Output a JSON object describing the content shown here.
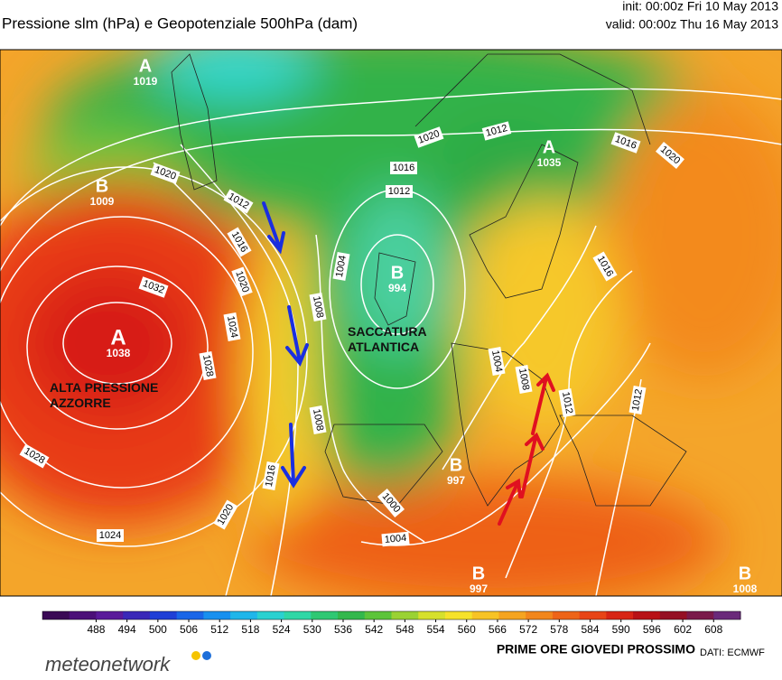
{
  "header": {
    "title": "Pressione slm (hPa) e Geopotenziale 500hPa (dam)",
    "init": "init: 00:00z Fri 10 May 2013",
    "valid": "valid: 00:00z Thu 16 May 2013"
  },
  "map": {
    "centers": [
      {
        "letter": "A",
        "value": "1038"
      },
      {
        "letter": "B",
        "value": "994"
      },
      {
        "letter": "B",
        "value": "1009"
      },
      {
        "letter": "A",
        "value": "1035"
      },
      {
        "letter": "A",
        "value": "1019"
      },
      {
        "letter": "B",
        "value": "997"
      },
      {
        "letter": "B",
        "value": "997"
      },
      {
        "letter": "B",
        "value": "1008"
      }
    ],
    "isobar_labels": [
      "1020",
      "1012",
      "1016",
      "1020",
      "1016",
      "1012",
      "1020",
      "1012",
      "1016",
      "1020",
      "1032",
      "1024",
      "1028",
      "1004",
      "1008",
      "1008",
      "1016",
      "1028",
      "1020",
      "1024",
      "1000",
      "1004",
      "1004",
      "1008",
      "1012",
      "1012",
      "1016"
    ],
    "annotations": [
      "ALTA PRESSIONE\nAZZORRE",
      "SACCATURA\nATLANTICA"
    ]
  },
  "colorbar": {
    "ticks": [
      488,
      494,
      500,
      506,
      512,
      518,
      524,
      530,
      536,
      542,
      548,
      554,
      560,
      566,
      572,
      578,
      584,
      590,
      596,
      602,
      608
    ],
    "colors": [
      "#3a0a55",
      "#4b1078",
      "#5a1a9a",
      "#3a28b8",
      "#1f3fd6",
      "#1a66e8",
      "#1890ef",
      "#1fb6ea",
      "#2ad1d0",
      "#2fd7a6",
      "#2fc873",
      "#33b84c",
      "#5cc43a",
      "#9ad233",
      "#d6e02c",
      "#f6e22a",
      "#f7c325",
      "#f5a420",
      "#f2861c",
      "#ee6418",
      "#e84416",
      "#d72515",
      "#b81216",
      "#951024",
      "#7a1a4a",
      "#6a2a7a"
    ]
  },
  "footer": {
    "caption": "PRIME ORE GIOVEDI PROSSIMO",
    "source": "DATI:  ECMWF",
    "brand": "meteonetwork"
  }
}
